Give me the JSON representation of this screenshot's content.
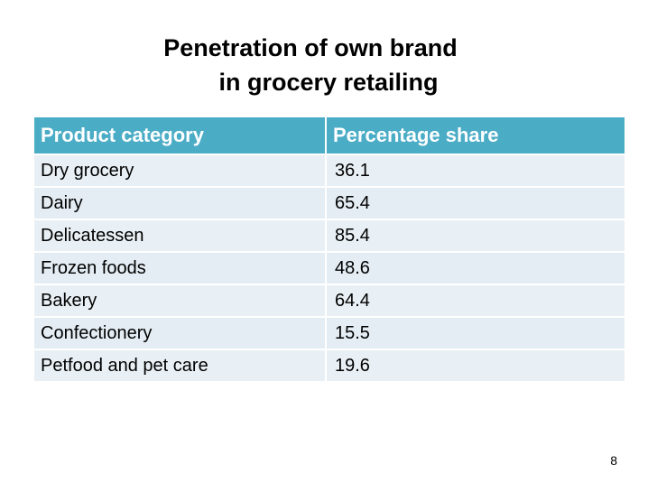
{
  "slide": {
    "title_line1": "Penetration of own brand",
    "title_line2": "in grocery retailing",
    "page_number": "8"
  },
  "table": {
    "headers": [
      "Product category",
      "Percentage share"
    ],
    "rows": [
      [
        "Dry grocery",
        "36.1"
      ],
      [
        "Dairy",
        "65.4"
      ],
      [
        "Delicatessen",
        "85.4"
      ],
      [
        "Frozen foods",
        "48.6"
      ],
      [
        "Bakery",
        "64.4"
      ],
      [
        "Confectionery",
        "15.5"
      ],
      [
        "Petfood and pet care",
        "19.6"
      ]
    ],
    "header_color": "#4bacc6",
    "row_color": "#e9f0f5"
  }
}
